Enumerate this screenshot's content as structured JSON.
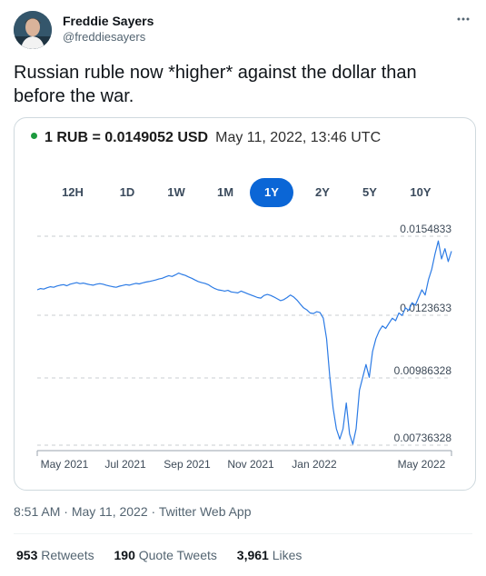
{
  "author": {
    "name": "Freddie Sayers",
    "handle": "@freddiesayers"
  },
  "more_icon": "more-horizontal-icon",
  "tweet": {
    "text": "Russian ruble now *higher* against the dollar than before the war."
  },
  "card": {
    "rate": "1 RUB = 0.0149052 USD",
    "timestamp": "May 11, 2022, 13:46 UTC",
    "live_color": "#1d9a3e",
    "ranges": [
      "12H",
      "1D",
      "1W",
      "1M",
      "1Y",
      "2Y",
      "5Y",
      "10Y"
    ],
    "active_range": "1Y"
  },
  "chart_data": {
    "type": "line",
    "xlabels": [
      "May 2021",
      "Jul 2021",
      "Sep 2021",
      "Nov 2021",
      "Jan 2022",
      "May 2022"
    ],
    "y_reference_lines": [
      0.0154833,
      0.0123633,
      0.00986328,
      0.00736328
    ],
    "y_reference_labels": [
      "0.0154833",
      "0.0123633",
      "0.00986328",
      "0.00736328"
    ],
    "line_color": "#2c7be5",
    "grid_style": "dashed",
    "ylim": [
      0.00736328,
      0.0154833
    ],
    "series": [
      {
        "values": [
          0.0134,
          0.01345,
          0.01343,
          0.01348,
          0.01352,
          0.0135,
          0.01355,
          0.01358,
          0.0136,
          0.01356,
          0.01362,
          0.01365,
          0.01368,
          0.01364,
          0.01366,
          0.01363,
          0.0136,
          0.01358,
          0.01362,
          0.01364,
          0.01362,
          0.01358,
          0.01355,
          0.01352,
          0.0135,
          0.01354,
          0.01357,
          0.0136,
          0.01358,
          0.01362,
          0.01365,
          0.01363,
          0.01367,
          0.0137,
          0.01372,
          0.01375,
          0.01378,
          0.01382,
          0.01385,
          0.0139,
          0.01395,
          0.01392,
          0.01398,
          0.01405,
          0.014,
          0.01396,
          0.0139,
          0.01385,
          0.01378,
          0.01372,
          0.01368,
          0.01365,
          0.0136,
          0.01352,
          0.01345,
          0.0134,
          0.01338,
          0.01335,
          0.01338,
          0.01332,
          0.0133,
          0.01328,
          0.01335,
          0.0133,
          0.01325,
          0.0132,
          0.01315,
          0.0131,
          0.01308,
          0.01318,
          0.01322,
          0.01318,
          0.01312,
          0.01305,
          0.01298,
          0.01302,
          0.0131,
          0.0132,
          0.01312,
          0.013,
          0.01285,
          0.0127,
          0.01262,
          0.0125,
          0.01248,
          0.01255,
          0.01252,
          0.0123,
          0.0115,
          0.01,
          0.0088,
          0.008,
          0.0076,
          0.008,
          0.009,
          0.0078,
          0.0074,
          0.008,
          0.0095,
          0.01,
          0.0105,
          0.01,
          0.011,
          0.0115,
          0.0118,
          0.012,
          0.0119,
          0.0121,
          0.0123,
          0.0122,
          0.0125,
          0.0124,
          0.0127,
          0.0126,
          0.0129,
          0.0128,
          0.0131,
          0.0134,
          0.0132,
          0.0138,
          0.0142,
          0.0148,
          0.0153,
          0.0146,
          0.015,
          0.0145,
          0.0149
        ]
      }
    ]
  },
  "footer": {
    "time": "8:51 AM",
    "date": "May 11, 2022",
    "source": "Twitter Web App",
    "retweets_count": "953",
    "retweets_label": "Retweets",
    "quotes_count": "190",
    "quotes_label": "Quote Tweets",
    "likes_count": "3,961",
    "likes_label": "Likes"
  }
}
